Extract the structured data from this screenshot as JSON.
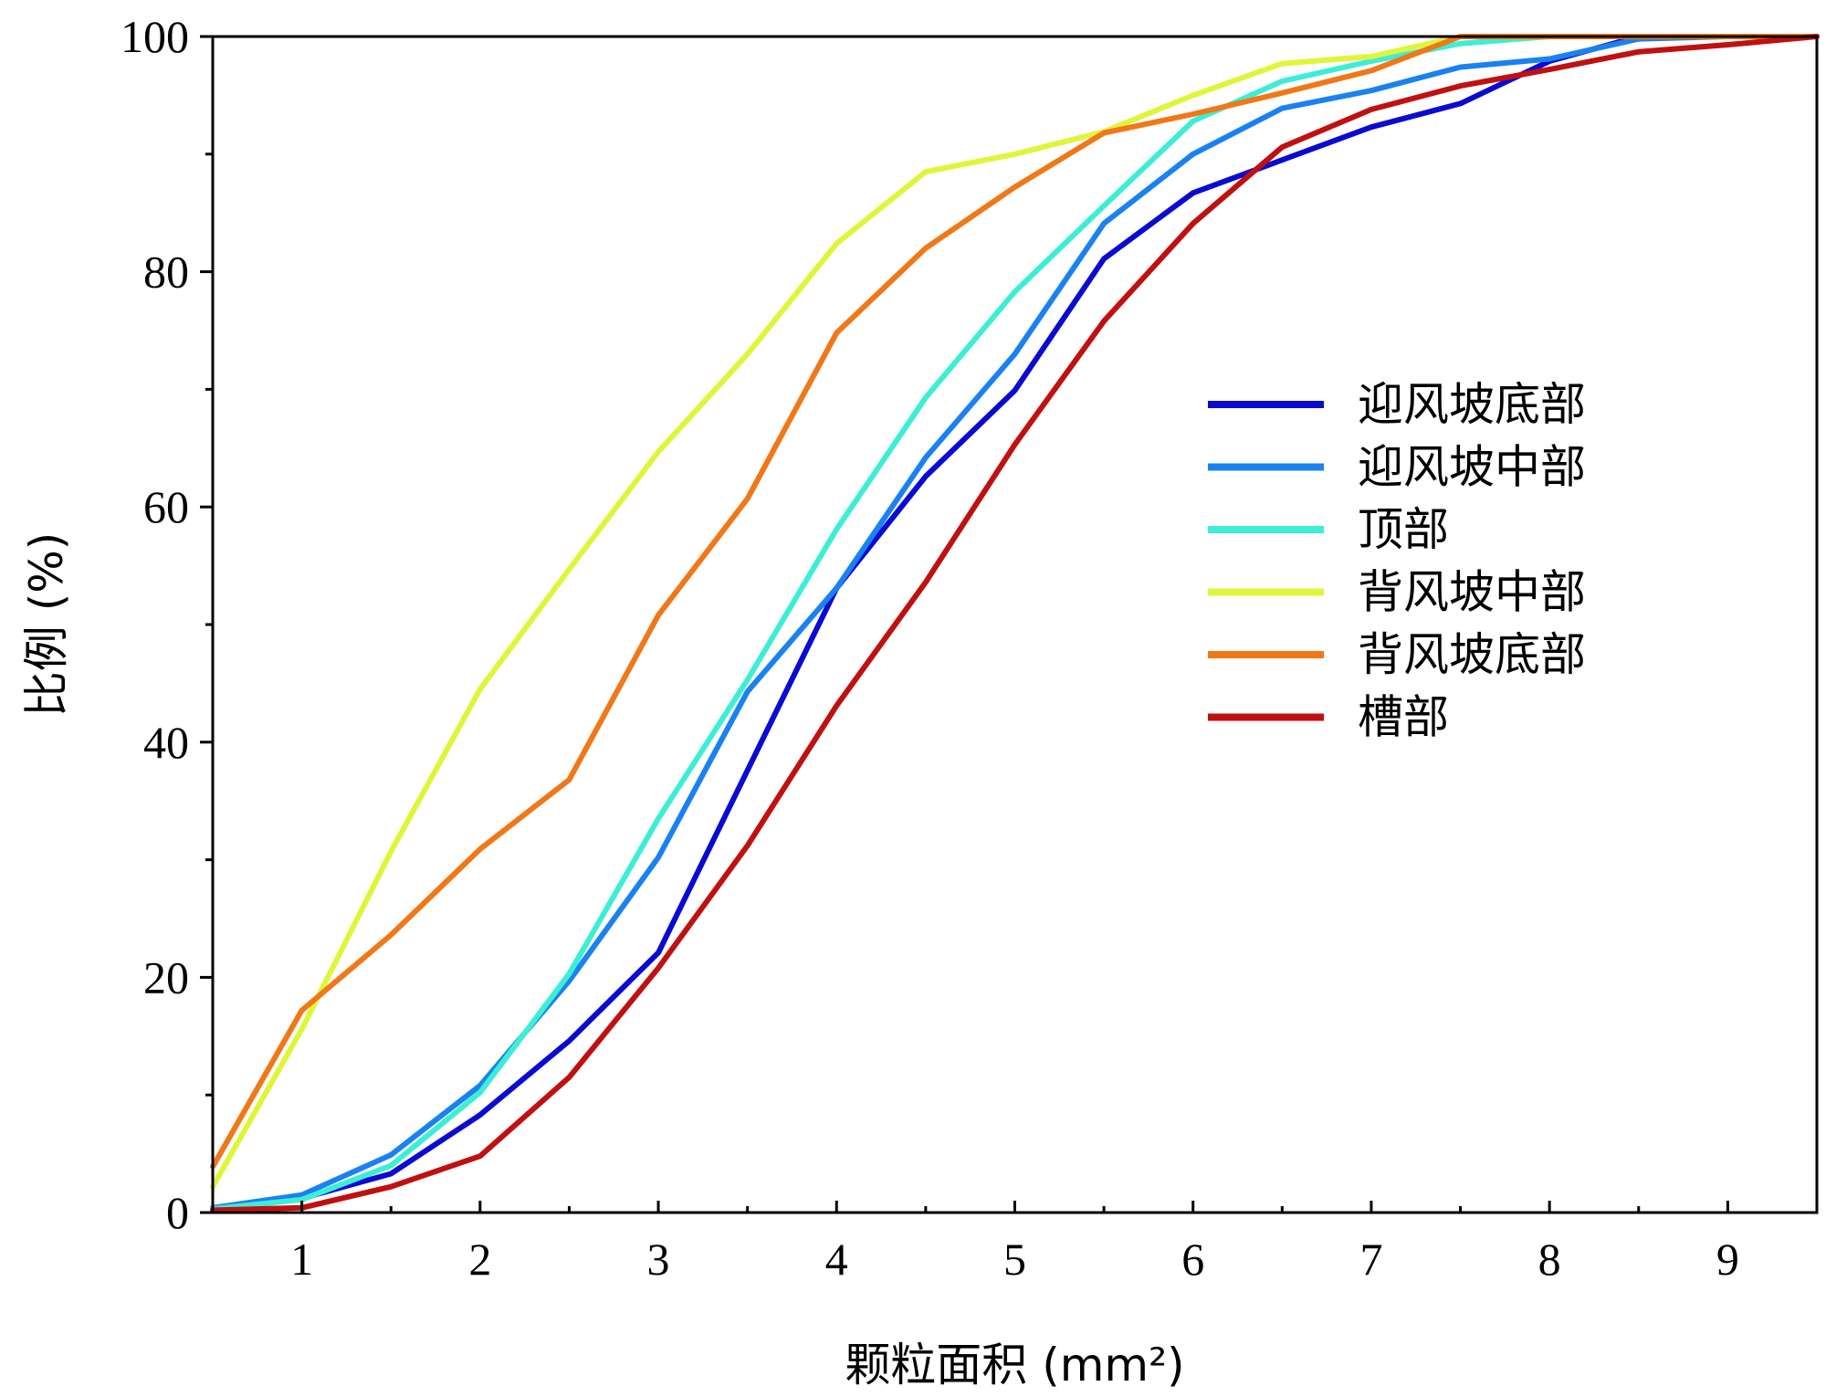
{
  "chart_data": {
    "type": "line",
    "xlabel": "颗粒面积 (mm²)",
    "ylabel": "比例 (%)",
    "xlim": [
      0.5,
      9.5
    ],
    "ylim": [
      0,
      100
    ],
    "x_ticks": [
      1,
      2,
      3,
      4,
      5,
      6,
      7,
      8,
      9
    ],
    "y_ticks": [
      0,
      20,
      40,
      60,
      80,
      100
    ],
    "grid": false,
    "legend_position": "center-right",
    "x": [
      0.5,
      1,
      1.5,
      2,
      2.5,
      3,
      3.5,
      4,
      4.5,
      5,
      5.5,
      6,
      6.5,
      7,
      7.5,
      8,
      8.5,
      9,
      9.5
    ],
    "series": [
      {
        "name": "迎风坡底部",
        "color": "#0a0ad2",
        "values": [
          0.3,
          1.2,
          3.3,
          8.3,
          14.6,
          22.1,
          37.6,
          53.1,
          62.6,
          69.9,
          81.1,
          86.7,
          89.5,
          92.3,
          94.3,
          97.9,
          100,
          100,
          100
        ]
      },
      {
        "name": "迎风坡中部",
        "color": "#1a82f0",
        "values": [
          0.4,
          1.5,
          4.9,
          10.8,
          19.7,
          30.2,
          44.3,
          53.1,
          64.2,
          73.0,
          84.1,
          90.0,
          93.9,
          95.4,
          97.4,
          98.1,
          99.8,
          100,
          100
        ]
      },
      {
        "name": "顶部",
        "color": "#3deed6",
        "values": [
          0.3,
          1.1,
          4.0,
          10.2,
          20.3,
          33.5,
          45.3,
          58.1,
          69.3,
          78.3,
          85.6,
          92.8,
          96.2,
          97.9,
          99.4,
          100,
          100,
          100,
          100
        ]
      },
      {
        "name": "背风坡中部",
        "color": "#e0f53a",
        "values": [
          2.2,
          15.6,
          30.7,
          44.5,
          54.7,
          64.7,
          73.0,
          82.4,
          88.5,
          90.0,
          91.9,
          95.0,
          97.7,
          98.3,
          100,
          100,
          100,
          100,
          100
        ]
      },
      {
        "name": "背风坡底部",
        "color": "#f07818",
        "values": [
          3.9,
          17.2,
          23.6,
          30.9,
          36.8,
          50.8,
          60.7,
          74.8,
          82.0,
          87.2,
          91.8,
          93.4,
          95.2,
          97.1,
          100,
          100,
          100,
          100,
          100
        ]
      },
      {
        "name": "槽部",
        "color": "#c01010",
        "values": [
          0.2,
          0.4,
          2.2,
          4.8,
          11.5,
          20.8,
          31.2,
          43.1,
          53.6,
          65.3,
          75.8,
          84.1,
          90.6,
          93.8,
          95.8,
          97.2,
          98.7,
          99.3,
          100
        ]
      }
    ]
  }
}
